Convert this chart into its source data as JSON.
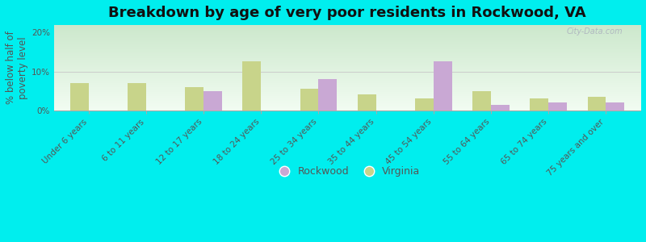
{
  "title": "Breakdown by age of very poor residents in Rockwood, VA",
  "ylabel": "% below half of\npoverty level",
  "categories": [
    "Under 6 years",
    "6 to 11 years",
    "12 to 17 years",
    "18 to 24 years",
    "25 to 34 years",
    "35 to 44 years",
    "45 to 54 years",
    "55 to 64 years",
    "65 to 74 years",
    "75 years and over"
  ],
  "rockwood": [
    0,
    0,
    5.0,
    0,
    8.0,
    0,
    12.5,
    1.5,
    2.0,
    2.0
  ],
  "virginia": [
    7.0,
    7.0,
    6.0,
    12.5,
    5.5,
    4.0,
    3.0,
    5.0,
    3.0,
    3.5
  ],
  "rockwood_color": "#c9a8d4",
  "virginia_color": "#c8d48a",
  "bg_color_topleft": "#cce8cc",
  "bg_color_topright": "#e8f0d8",
  "bg_color_bottom": "#f0faf0",
  "outer_background": "#00eeee",
  "ylim": [
    0,
    22
  ],
  "yticks": [
    0,
    10,
    20
  ],
  "ytick_labels": [
    "0%",
    "10%",
    "20%"
  ],
  "bar_width": 0.32,
  "title_fontsize": 13,
  "axis_fontsize": 8.5,
  "tick_fontsize": 7.5,
  "legend_fontsize": 9,
  "watermark": "City-Data.com"
}
